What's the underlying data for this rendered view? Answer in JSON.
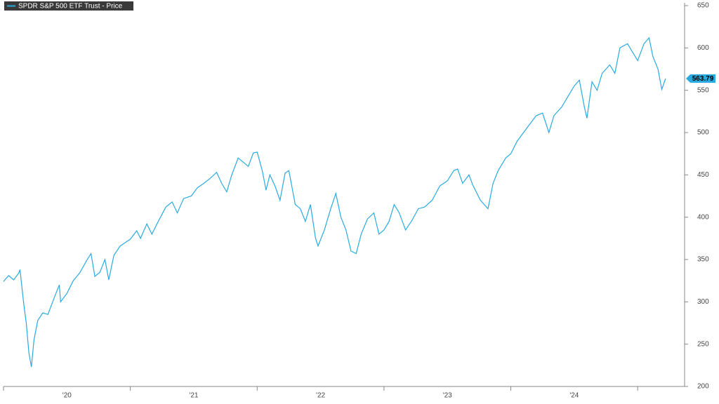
{
  "chart_data": {
    "type": "line",
    "series": [
      {
        "name": "SPDR S&P 500 ETF Trust - Price",
        "color": "#29abe2",
        "x": [
          2020.0,
          2020.04,
          2020.08,
          2020.12,
          2020.13,
          2020.16,
          2020.18,
          2020.2,
          2020.22,
          2020.24,
          2020.27,
          2020.31,
          2020.35,
          2020.4,
          2020.44,
          2020.45,
          2020.5,
          2020.55,
          2020.6,
          2020.66,
          2020.69,
          2020.72,
          2020.76,
          2020.8,
          2020.83,
          2020.87,
          2020.92,
          2020.96,
          2021.0,
          2021.05,
          2021.08,
          2021.13,
          2021.17,
          2021.22,
          2021.28,
          2021.33,
          2021.37,
          2021.42,
          2021.48,
          2021.53,
          2021.58,
          2021.63,
          2021.68,
          2021.72,
          2021.76,
          2021.8,
          2021.85,
          2021.89,
          2021.93,
          2021.97,
          2022.0,
          2022.04,
          2022.07,
          2022.1,
          2022.14,
          2022.18,
          2022.22,
          2022.25,
          2022.3,
          2022.34,
          2022.38,
          2022.42,
          2022.46,
          2022.48,
          2022.53,
          2022.58,
          2022.62,
          2022.66,
          2022.7,
          2022.74,
          2022.78,
          2022.82,
          2022.87,
          2022.92,
          2022.96,
          2023.0,
          2023.04,
          2023.08,
          2023.12,
          2023.17,
          2023.22,
          2023.27,
          2023.32,
          2023.38,
          2023.44,
          2023.5,
          2023.55,
          2023.58,
          2023.62,
          2023.67,
          2023.7,
          2023.76,
          2023.82,
          2023.86,
          2023.9,
          2023.96,
          2024.0,
          2024.05,
          2024.1,
          2024.15,
          2024.2,
          2024.25,
          2024.3,
          2024.34,
          2024.4,
          2024.46,
          2024.5,
          2024.54,
          2024.58,
          2024.6,
          2024.64,
          2024.68,
          2024.72,
          2024.78,
          2024.82,
          2024.86,
          2024.92,
          2024.96,
          2025.0,
          2025.05,
          2025.09,
          2025.12,
          2025.16,
          2025.19,
          2025.22
        ],
        "values": [
          324,
          331,
          326,
          334,
          338,
          297,
          274,
          240,
          223,
          255,
          278,
          287,
          285,
          305,
          320,
          300,
          310,
          325,
          334,
          350,
          357,
          330,
          335,
          350,
          326,
          355,
          366,
          370,
          374,
          384,
          375,
          392,
          380,
          395,
          412,
          418,
          405,
          422,
          425,
          435,
          440,
          446,
          453,
          440,
          430,
          450,
          470,
          465,
          460,
          476,
          477,
          455,
          432,
          450,
          437,
          420,
          452,
          455,
          415,
          410,
          395,
          415,
          375,
          366,
          385,
          410,
          428,
          400,
          385,
          360,
          357,
          380,
          398,
          405,
          380,
          385,
          395,
          415,
          405,
          385,
          396,
          410,
          412,
          420,
          437,
          443,
          455,
          457,
          440,
          450,
          438,
          420,
          410,
          440,
          455,
          470,
          475,
          490,
          500,
          510,
          520,
          523,
          500,
          520,
          530,
          545,
          555,
          562,
          530,
          517,
          560,
          550,
          570,
          580,
          570,
          600,
          605,
          595,
          585,
          605,
          612,
          590,
          575,
          551,
          563.79
        ]
      }
    ],
    "xlim": [
      2020,
      2025.37
    ],
    "xticks": [
      2020,
      2021,
      2022,
      2023,
      2024,
      2025
    ],
    "xtick_labels": [
      {
        "value": 2020.5,
        "label": "'20"
      },
      {
        "value": 2021.5,
        "label": "'21"
      },
      {
        "value": 2022.5,
        "label": "'22"
      },
      {
        "value": 2023.5,
        "label": "'23"
      },
      {
        "value": 2024.5,
        "label": "'24"
      }
    ],
    "ylim": [
      200,
      650
    ],
    "yticks": [
      200,
      250,
      300,
      350,
      400,
      450,
      500,
      550,
      600,
      650
    ],
    "y_axis_side": "right",
    "legend": "top-left"
  }
}
